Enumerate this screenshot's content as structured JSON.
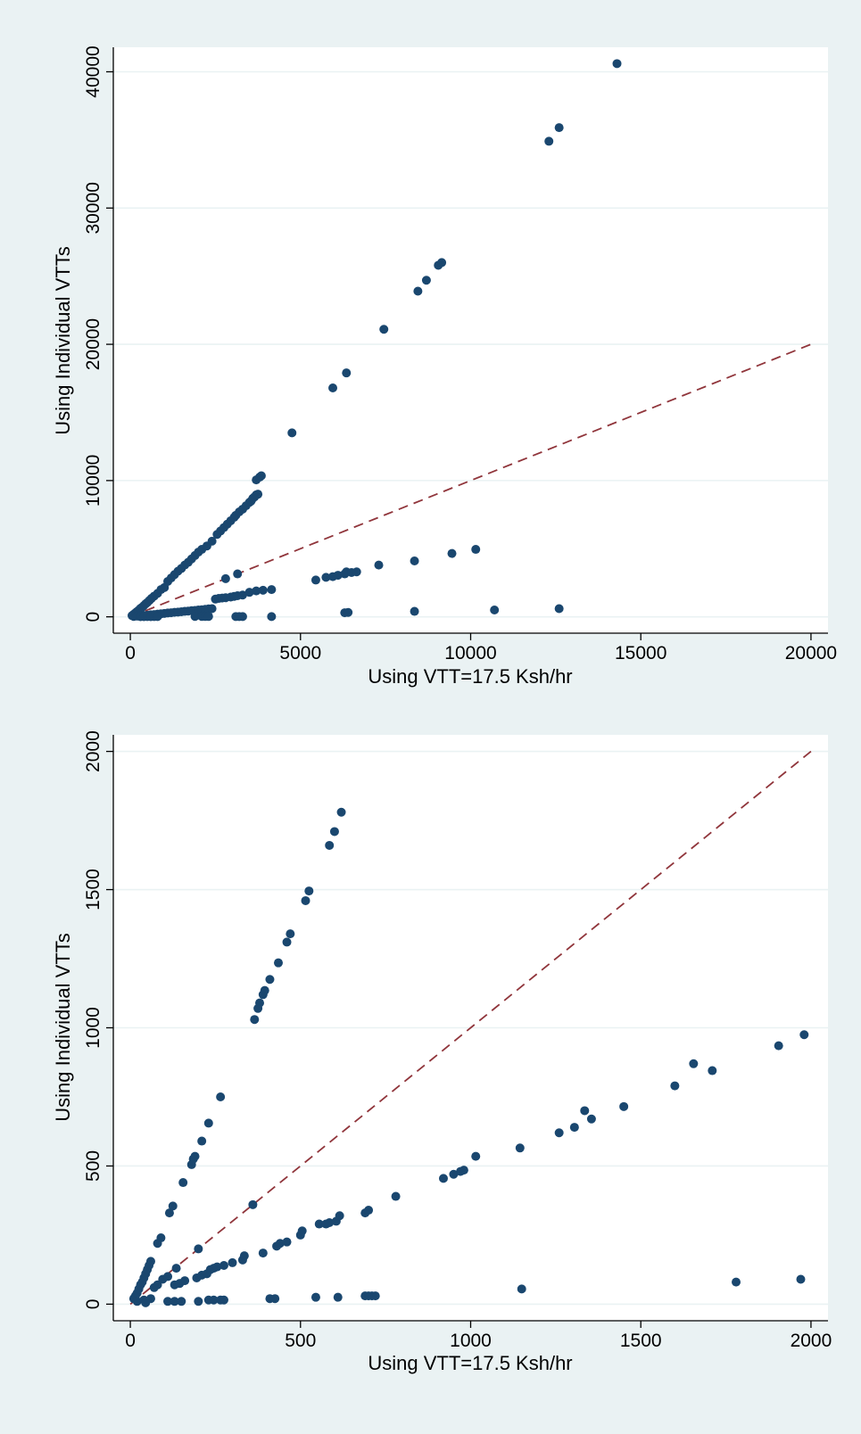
{
  "colors": {
    "background": "#eaf2f3",
    "plot_area": "#ffffff",
    "points": "#1a476f",
    "reference_line": "#90353b"
  },
  "chart_data": [
    {
      "type": "scatter",
      "xlabel": "Using VTT=17.5 Ksh/hr",
      "ylabel": "Using Individual VTTs",
      "xlim": [
        -500,
        20500
      ],
      "ylim": [
        -1200,
        41800
      ],
      "xticks": [
        0,
        5000,
        10000,
        15000,
        20000
      ],
      "yticks": [
        0,
        10000,
        20000,
        30000,
        40000
      ],
      "xtick_labels": [
        "0",
        "5000",
        "10000",
        "15000",
        "20000"
      ],
      "ytick_labels": [
        "0",
        "10000",
        "20000",
        "30000",
        "40000"
      ],
      "grid": true,
      "reference_line": {
        "style": "dashed",
        "from": [
          0,
          0
        ],
        "to": [
          20000,
          20000
        ]
      },
      "points": [
        [
          50,
          90
        ],
        [
          100,
          190
        ],
        [
          150,
          290
        ],
        [
          200,
          390
        ],
        [
          250,
          490
        ],
        [
          300,
          620
        ],
        [
          350,
          710
        ],
        [
          400,
          830
        ],
        [
          450,
          950
        ],
        [
          500,
          1050
        ],
        [
          560,
          1200
        ],
        [
          620,
          1350
        ],
        [
          700,
          1520
        ],
        [
          800,
          1720
        ],
        [
          900,
          2000
        ],
        [
          1000,
          2150
        ],
        [
          1100,
          2600
        ],
        [
          1200,
          2850
        ],
        [
          1300,
          3100
        ],
        [
          1400,
          3350
        ],
        [
          1500,
          3550
        ],
        [
          1600,
          3800
        ],
        [
          1700,
          4000
        ],
        [
          1800,
          4250
        ],
        [
          1900,
          4500
        ],
        [
          2000,
          4750
        ],
        [
          2100,
          4950
        ],
        [
          2250,
          5200
        ],
        [
          2400,
          5550
        ],
        [
          2550,
          6050
        ],
        [
          2650,
          6300
        ],
        [
          2750,
          6550
        ],
        [
          2850,
          6800
        ],
        [
          2950,
          7050
        ],
        [
          3050,
          7300
        ],
        [
          3100,
          7450
        ],
        [
          3200,
          7700
        ],
        [
          3300,
          7900
        ],
        [
          3400,
          8150
        ],
        [
          3500,
          8400
        ],
        [
          3550,
          8500
        ],
        [
          3600,
          8700
        ],
        [
          3650,
          8800
        ],
        [
          3700,
          8950
        ],
        [
          3750,
          9000
        ],
        [
          3700,
          10050
        ],
        [
          3800,
          10250
        ],
        [
          3850,
          10350
        ],
        [
          4750,
          13500
        ],
        [
          5950,
          16800
        ],
        [
          6350,
          17900
        ],
        [
          7450,
          21100
        ],
        [
          8450,
          23900
        ],
        [
          8700,
          24700
        ],
        [
          9050,
          25800
        ],
        [
          9150,
          26000
        ],
        [
          12300,
          34900
        ],
        [
          12600,
          35900
        ],
        [
          14300,
          40600
        ],
        [
          100,
          30
        ],
        [
          200,
          50
        ],
        [
          300,
          80
        ],
        [
          400,
          100
        ],
        [
          500,
          120
        ],
        [
          600,
          150
        ],
        [
          700,
          170
        ],
        [
          800,
          200
        ],
        [
          900,
          220
        ],
        [
          1000,
          250
        ],
        [
          1100,
          280
        ],
        [
          1200,
          300
        ],
        [
          1300,
          330
        ],
        [
          1400,
          350
        ],
        [
          1500,
          370
        ],
        [
          1600,
          400
        ],
        [
          1700,
          420
        ],
        [
          1800,
          450
        ],
        [
          1900,
          470
        ],
        [
          2000,
          500
        ],
        [
          2100,
          520
        ],
        [
          2200,
          550
        ],
        [
          2300,
          580
        ],
        [
          2400,
          600
        ],
        [
          2500,
          1300
        ],
        [
          2600,
          1350
        ],
        [
          2700,
          1380
        ],
        [
          2800,
          1400
        ],
        [
          2950,
          1450
        ],
        [
          3050,
          1500
        ],
        [
          3150,
          1550
        ],
        [
          3300,
          1600
        ],
        [
          2800,
          2800
        ],
        [
          3150,
          3150
        ],
        [
          3500,
          1800
        ],
        [
          3700,
          1900
        ],
        [
          3900,
          1950
        ],
        [
          4150,
          2000
        ],
        [
          5450,
          2700
        ],
        [
          5750,
          2900
        ],
        [
          5950,
          2950
        ],
        [
          6100,
          3050
        ],
        [
          6300,
          3150
        ],
        [
          6350,
          3300
        ],
        [
          6500,
          3250
        ],
        [
          6650,
          3300
        ],
        [
          7300,
          3800
        ],
        [
          8350,
          4100
        ],
        [
          9450,
          4650
        ],
        [
          10150,
          4950
        ],
        [
          1900,
          30
        ],
        [
          2100,
          30
        ],
        [
          2200,
          30
        ],
        [
          2300,
          30
        ],
        [
          3100,
          20
        ],
        [
          3200,
          20
        ],
        [
          3300,
          20
        ],
        [
          4150,
          20
        ],
        [
          6300,
          300
        ],
        [
          6400,
          320
        ],
        [
          8350,
          400
        ],
        [
          10700,
          500
        ],
        [
          12600,
          600
        ],
        [
          300,
          10
        ],
        [
          400,
          10
        ],
        [
          500,
          15
        ],
        [
          600,
          10
        ],
        [
          700,
          15
        ],
        [
          800,
          20
        ]
      ]
    },
    {
      "type": "scatter",
      "xlabel": "Using VTT=17.5 Ksh/hr",
      "ylabel": "Using Individual VTTs",
      "xlim": [
        -50,
        2050
      ],
      "ylim": [
        -60,
        2060
      ],
      "xticks": [
        0,
        500,
        1000,
        1500,
        2000
      ],
      "yticks": [
        0,
        500,
        1000,
        1500,
        2000
      ],
      "xtick_labels": [
        "0",
        "500",
        "1000",
        "1500",
        "2000"
      ],
      "ytick_labels": [
        "0",
        "500",
        "1000",
        "1500",
        "2000"
      ],
      "grid": true,
      "reference_line": {
        "style": "dashed",
        "from": [
          0,
          0
        ],
        "to": [
          2000,
          2000
        ]
      },
      "points": [
        [
          10,
          20
        ],
        [
          15,
          30
        ],
        [
          20,
          40
        ],
        [
          25,
          55
        ],
        [
          30,
          70
        ],
        [
          35,
          80
        ],
        [
          40,
          95
        ],
        [
          45,
          110
        ],
        [
          50,
          125
        ],
        [
          55,
          140
        ],
        [
          60,
          155
        ],
        [
          80,
          220
        ],
        [
          90,
          240
        ],
        [
          115,
          330
        ],
        [
          125,
          355
        ],
        [
          155,
          440
        ],
        [
          180,
          505
        ],
        [
          185,
          525
        ],
        [
          190,
          535
        ],
        [
          210,
          590
        ],
        [
          230,
          655
        ],
        [
          265,
          750
        ],
        [
          365,
          1030
        ],
        [
          375,
          1070
        ],
        [
          380,
          1090
        ],
        [
          390,
          1120
        ],
        [
          395,
          1135
        ],
        [
          410,
          1175
        ],
        [
          435,
          1235
        ],
        [
          460,
          1310
        ],
        [
          470,
          1340
        ],
        [
          515,
          1460
        ],
        [
          525,
          1495
        ],
        [
          585,
          1660
        ],
        [
          600,
          1710
        ],
        [
          620,
          1780
        ],
        [
          20,
          10
        ],
        [
          40,
          15
        ],
        [
          60,
          20
        ],
        [
          70,
          60
        ],
        [
          80,
          70
        ],
        [
          95,
          90
        ],
        [
          110,
          100
        ],
        [
          130,
          70
        ],
        [
          135,
          130
        ],
        [
          145,
          75
        ],
        [
          160,
          85
        ],
        [
          195,
          95
        ],
        [
          200,
          200
        ],
        [
          210,
          105
        ],
        [
          225,
          110
        ],
        [
          235,
          125
        ],
        [
          245,
          130
        ],
        [
          255,
          135
        ],
        [
          275,
          140
        ],
        [
          300,
          150
        ],
        [
          330,
          160
        ],
        [
          335,
          175
        ],
        [
          360,
          360
        ],
        [
          390,
          185
        ],
        [
          430,
          210
        ],
        [
          440,
          220
        ],
        [
          460,
          225
        ],
        [
          500,
          250
        ],
        [
          505,
          265
        ],
        [
          555,
          290
        ],
        [
          575,
          290
        ],
        [
          585,
          295
        ],
        [
          605,
          300
        ],
        [
          615,
          320
        ],
        [
          690,
          330
        ],
        [
          700,
          340
        ],
        [
          780,
          390
        ],
        [
          920,
          455
        ],
        [
          950,
          470
        ],
        [
          970,
          480
        ],
        [
          980,
          485
        ],
        [
          1015,
          535
        ],
        [
          1145,
          565
        ],
        [
          1260,
          620
        ],
        [
          1305,
          640
        ],
        [
          1335,
          700
        ],
        [
          1355,
          670
        ],
        [
          1450,
          715
        ],
        [
          1600,
          790
        ],
        [
          1655,
          870
        ],
        [
          1710,
          845
        ],
        [
          1905,
          935
        ],
        [
          1980,
          975
        ],
        [
          45,
          5
        ],
        [
          110,
          10
        ],
        [
          130,
          10
        ],
        [
          150,
          10
        ],
        [
          200,
          10
        ],
        [
          230,
          15
        ],
        [
          245,
          15
        ],
        [
          265,
          15
        ],
        [
          275,
          15
        ],
        [
          410,
          20
        ],
        [
          425,
          20
        ],
        [
          545,
          25
        ],
        [
          610,
          25
        ],
        [
          690,
          30
        ],
        [
          700,
          30
        ],
        [
          710,
          30
        ],
        [
          720,
          30
        ],
        [
          1150,
          55
        ],
        [
          1780,
          80
        ],
        [
          1970,
          90
        ]
      ]
    }
  ]
}
